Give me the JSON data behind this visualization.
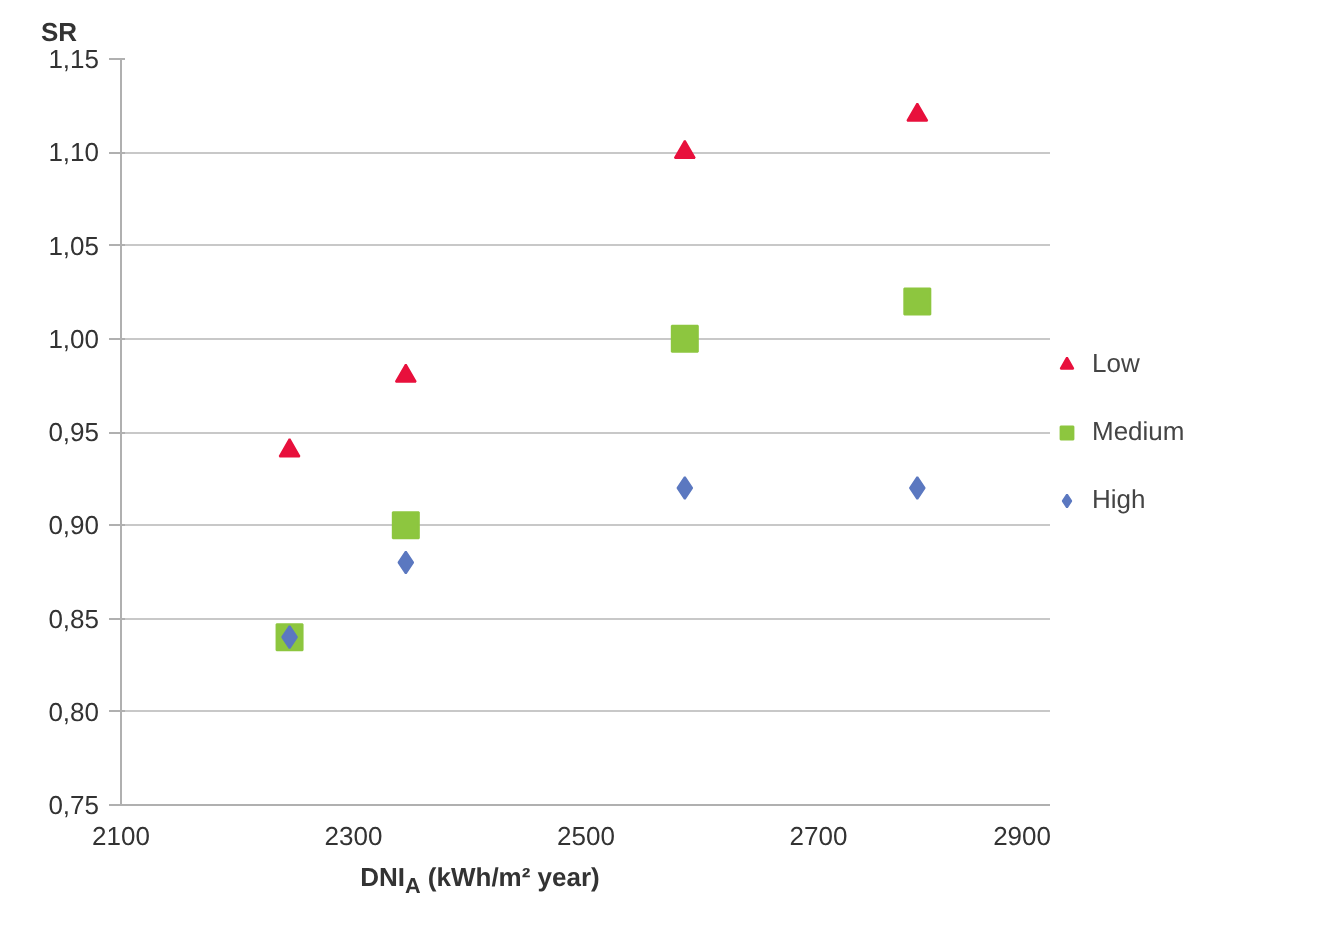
{
  "chart_data": {
    "type": "scatter",
    "ylabel": "SR",
    "xlabel": "DNI$_{A}$ (kWh/m² year)",
    "xlim": [
      2100,
      2900
    ],
    "xticks": [
      2100,
      2300,
      2500,
      2700,
      2900
    ],
    "ylim": [
      0.75,
      1.15
    ],
    "yticks": [
      {
        "value": 0.75,
        "label": "0,75"
      },
      {
        "value": 0.8,
        "label": "0,80"
      },
      {
        "value": 0.85,
        "label": "0,85"
      },
      {
        "value": 0.9,
        "label": "0,90"
      },
      {
        "value": 0.95,
        "label": "0,95"
      },
      {
        "value": 1.0,
        "label": "1,00"
      },
      {
        "value": 1.05,
        "label": "1,05"
      },
      {
        "value": 1.1,
        "label": "1,10"
      },
      {
        "value": 1.15,
        "label": "1,15"
      }
    ],
    "x": [
      2245,
      2345,
      2585,
      2785
    ],
    "series": [
      {
        "name": "Low",
        "color": "#e8103c",
        "marker": "triangle",
        "values": [
          0.94,
          0.98,
          1.1,
          1.12
        ]
      },
      {
        "name": "Medium",
        "color": "#8dc63f",
        "marker": "square",
        "values": [
          0.84,
          0.9,
          1.0,
          1.02
        ]
      },
      {
        "name": "High",
        "color": "#5b78c0",
        "marker": "diamond",
        "values": [
          0.84,
          0.88,
          0.92,
          0.92
        ]
      }
    ],
    "grid": "y",
    "legend": "right"
  }
}
